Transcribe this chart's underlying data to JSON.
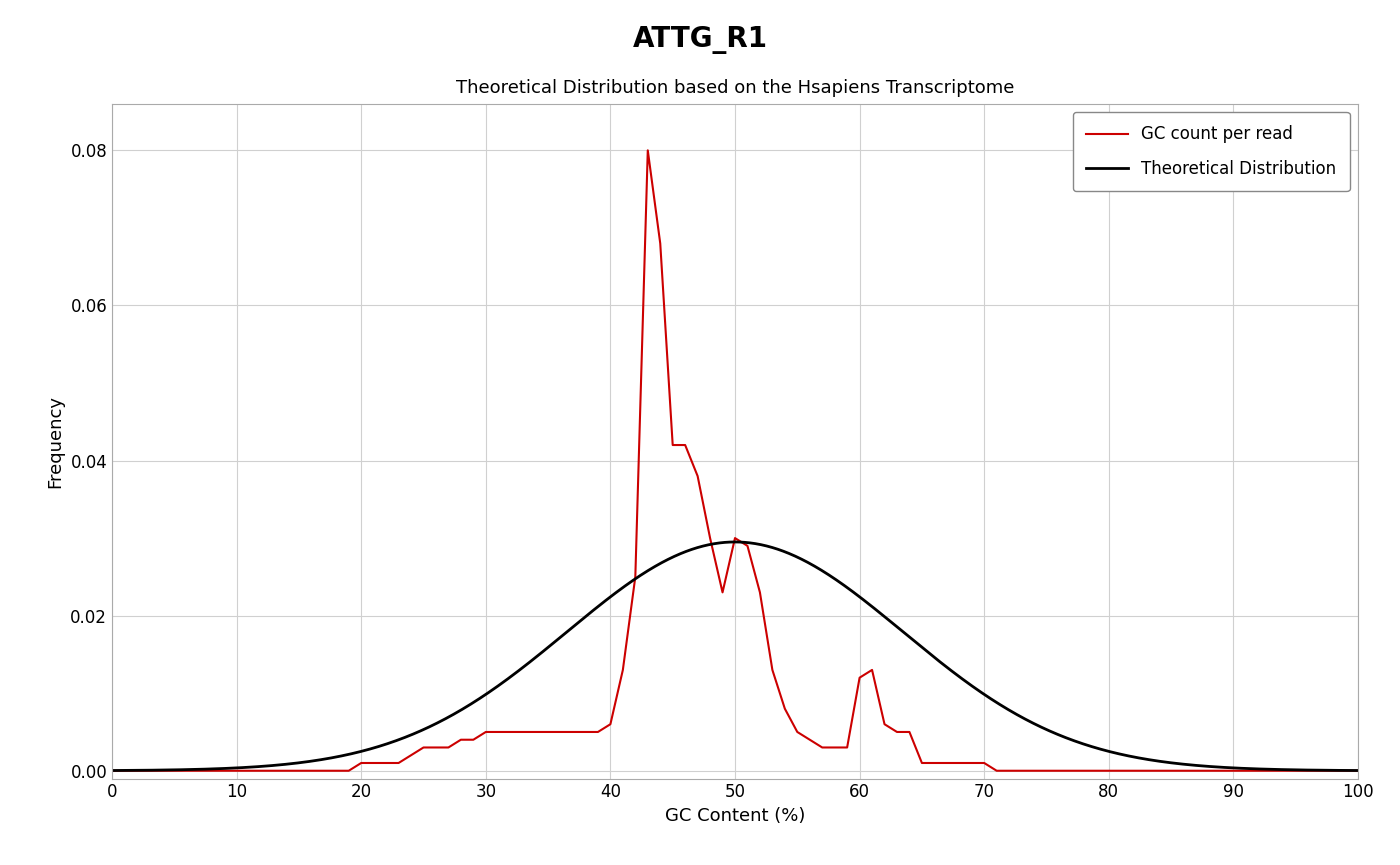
{
  "title": "ATTG_R1",
  "subtitle": "Theoretical Distribution based on the Hsapiens Transcriptome",
  "xlabel": "GC Content (%)",
  "ylabel": "Frequency",
  "xlim": [
    0,
    100
  ],
  "ylim": [
    -0.001,
    0.086
  ],
  "yticks": [
    0.0,
    0.02,
    0.04,
    0.06,
    0.08
  ],
  "xticks": [
    0,
    10,
    20,
    30,
    40,
    50,
    60,
    70,
    80,
    90,
    100
  ],
  "legend_labels": [
    "GC count per read",
    "Theoretical Distribution"
  ],
  "red_color": "#cc0000",
  "black_color": "#000000",
  "background_color": "#ffffff",
  "grid_color": "#d0d0d0",
  "gc_per_read_x": [
    0,
    1,
    2,
    3,
    4,
    5,
    6,
    7,
    8,
    9,
    10,
    11,
    12,
    13,
    14,
    15,
    16,
    17,
    18,
    19,
    20,
    21,
    22,
    23,
    24,
    25,
    26,
    27,
    28,
    29,
    30,
    31,
    32,
    33,
    34,
    35,
    36,
    37,
    38,
    39,
    40,
    41,
    42,
    43,
    44,
    45,
    46,
    47,
    48,
    49,
    50,
    51,
    52,
    53,
    54,
    55,
    56,
    57,
    58,
    59,
    60,
    61,
    62,
    63,
    64,
    65,
    66,
    67,
    68,
    69,
    70,
    71,
    72,
    73,
    74,
    75,
    76,
    77,
    78,
    79,
    80,
    81,
    82,
    83,
    84,
    85,
    86,
    87,
    88,
    89,
    90,
    91,
    92,
    93,
    94,
    95,
    96,
    97,
    98,
    99,
    100
  ],
  "gc_per_read_y": [
    0.0,
    0.0,
    0.0,
    0.0,
    0.0,
    0.0,
    0.0,
    0.0,
    0.0,
    0.0,
    0.0,
    0.0,
    0.0,
    0.0,
    0.0,
    0.0,
    0.0,
    0.0,
    0.0,
    0.0,
    0.001,
    0.001,
    0.001,
    0.001,
    0.002,
    0.003,
    0.003,
    0.003,
    0.004,
    0.004,
    0.005,
    0.005,
    0.005,
    0.005,
    0.005,
    0.005,
    0.005,
    0.005,
    0.005,
    0.005,
    0.006,
    0.013,
    0.025,
    0.08,
    0.068,
    0.042,
    0.042,
    0.038,
    0.03,
    0.023,
    0.03,
    0.029,
    0.023,
    0.013,
    0.008,
    0.005,
    0.004,
    0.003,
    0.003,
    0.003,
    0.012,
    0.013,
    0.006,
    0.005,
    0.005,
    0.001,
    0.001,
    0.001,
    0.001,
    0.001,
    0.001,
    0.0,
    0.0,
    0.0,
    0.0,
    0.0,
    0.0,
    0.0,
    0.0,
    0.0,
    0.0,
    0.0,
    0.0,
    0.0,
    0.0,
    0.0,
    0.0,
    0.0,
    0.0,
    0.0,
    0.0,
    0.0,
    0.0,
    0.0,
    0.0,
    0.0,
    0.0,
    0.0,
    0.0,
    0.0,
    0.0
  ],
  "theoretical_mean": 50,
  "theoretical_std": 13.5,
  "theoretical_peak": 0.0295
}
